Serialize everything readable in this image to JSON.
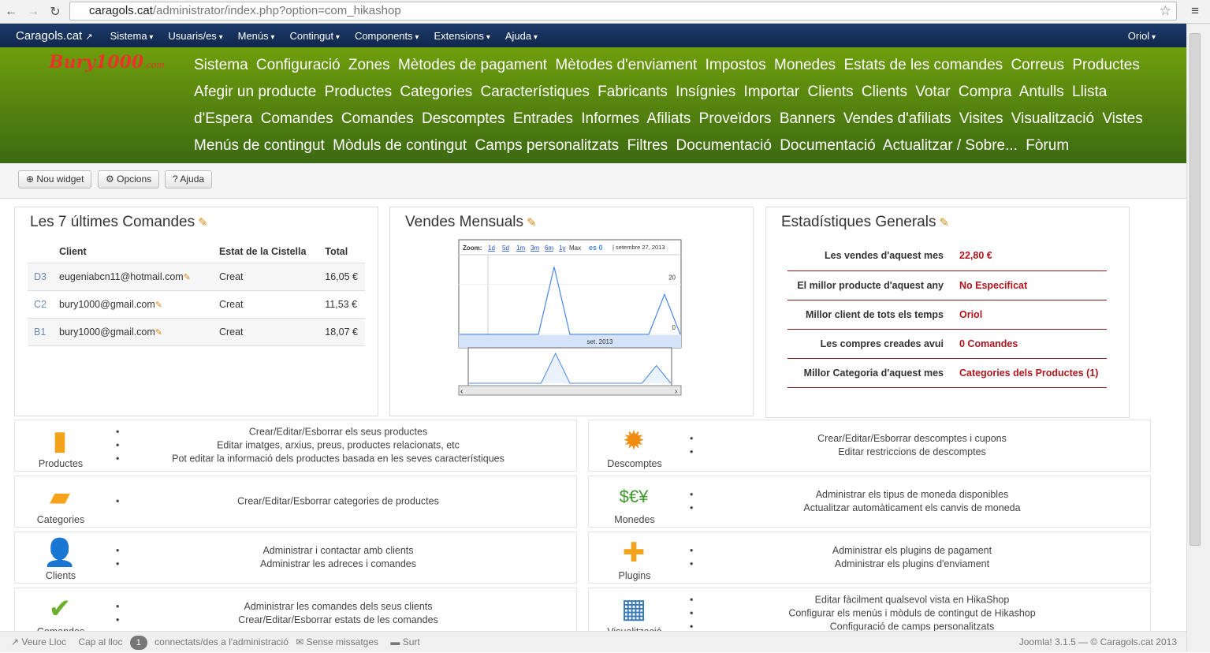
{
  "browser": {
    "url_host": "caragols.cat",
    "url_path": "/administrator/index.php?option=com_hikashop"
  },
  "navbar": {
    "brand": "Caragols.cat",
    "items": [
      "Sistema",
      "Usuaris/es",
      "Menús",
      "Contingut",
      "Components",
      "Extensions",
      "Ajuda"
    ],
    "user": "Oriol"
  },
  "banner": {
    "logo": "Bury1000.com",
    "links": [
      "Sistema",
      "Configuració",
      "Zones",
      "Mètodes de pagament",
      "Mètodes d'enviament",
      "Impostos",
      "Monedes",
      "Estats de les comandes",
      "Correus",
      "Productes",
      "Afegir un producte",
      "Productes",
      "Categories",
      "Característiques",
      "Fabricants",
      "Insígnies",
      "Importar",
      "Clients",
      "Clients",
      "Votar",
      "Compra",
      "Antulls",
      "Llista d'Espera",
      "Comandes",
      "Comandes",
      "Descomptes",
      "Entrades",
      "Informes",
      "Afiliats",
      "Proveïdors",
      "Banners",
      "Vendes d'afiliats",
      "Visites",
      "Visualització",
      "Vistes",
      "Menús de contingut",
      "Mòduls de contingut",
      "Camps personalitzats",
      "Filtres",
      "Documentació",
      "Documentació",
      "Actualitzar / Sobre...",
      "Fòrum"
    ]
  },
  "toolbar": {
    "new_widget": "Nou widget",
    "options": "Opcions",
    "help": "Ajuda"
  },
  "orders": {
    "title": "Les 7 últimes Comandes",
    "headers": [
      "Client",
      "Estat de la Cistella",
      "Total"
    ],
    "rows": [
      {
        "id": "D3",
        "client": "eugeniabcn11@hotmail.com",
        "status": "Creat",
        "total": "16,05 €"
      },
      {
        "id": "C2",
        "client": "bury1000@gmail.com",
        "status": "Creat",
        "total": "11,53 €"
      },
      {
        "id": "B1",
        "client": "bury1000@gmail.com",
        "status": "Creat",
        "total": "18,07 €"
      }
    ]
  },
  "sales": {
    "title": "Vendes Mensuals"
  },
  "chart_data": {
    "type": "line",
    "zoom_label": "Zoom:",
    "zoom_options": [
      "1d",
      "5d",
      "1m",
      "3m",
      "6m",
      "1y",
      "Max"
    ],
    "legend": "es 0",
    "date_label": "setembre 27, 2013",
    "x_tick": "set. 2013",
    "y_ticks": [
      0,
      20
    ],
    "ylim": [
      0,
      30
    ],
    "values": [
      0,
      0,
      0,
      0,
      0,
      0,
      27,
      0,
      0,
      0,
      0,
      0,
      0,
      16,
      0
    ],
    "color": "#4a86e8"
  },
  "stats": {
    "title": "Estadístiques Generals",
    "rows": [
      {
        "k": "Les vendes d'aquest mes",
        "v": "22,80 €"
      },
      {
        "k": "El millor producte d'aquest any",
        "v": "No Especificat"
      },
      {
        "k": "Millor client de tots els temps",
        "v": "Oriol"
      },
      {
        "k": "Les compres creades avui",
        "v": "0 Comandes"
      },
      {
        "k": "Millor Categoria d'aquest mes",
        "v": "Categories dels Productes (1)"
      }
    ]
  },
  "tiles": [
    {
      "name": "Productes",
      "icon": "box-icon",
      "lines": [
        "Crear/Editar/Esborrar els seus productes",
        "Editar imatges, arxius, preus, productes relacionats, etc",
        "Pot editar la informació dels productes basada en les seves característiques"
      ]
    },
    {
      "name": "Descomptes",
      "icon": "discount-badge-icon",
      "lines": [
        "Crear/Editar/Esborrar descomptes i cupons",
        "Editar restriccions de descomptes"
      ]
    },
    {
      "name": "Categories",
      "icon": "folder-icon",
      "lines": [
        "Crear/Editar/Esborrar categories de productes"
      ]
    },
    {
      "name": "Monedes",
      "icon": "currency-icon",
      "lines": [
        "Administrar els tipus de moneda disponibles",
        "Actualitzar automàticament els canvis de moneda"
      ]
    },
    {
      "name": "Clients",
      "icon": "users-icon",
      "lines": [
        "Administrar i contactar amb clients",
        "Administrar les adreces i comandes"
      ]
    },
    {
      "name": "Plugins",
      "icon": "puzzle-icon",
      "lines": [
        "Administrar els plugins de pagament",
        "Administrar els plugins d'enviament"
      ]
    },
    {
      "name": "Comandes",
      "icon": "checklist-icon",
      "lines": [
        "Administrar les comandes dels seus clients",
        "Crear/Editar/Esborrar estats de les comandes"
      ]
    },
    {
      "name": "Visualització",
      "icon": "window-icon",
      "lines": [
        "Editar fàcilment qualsevol vista en HikaShop",
        "Configurar els menús i mòduls de contingut de Hikashop",
        "Configuració de camps personalitzats"
      ]
    }
  ],
  "status": {
    "view_site": "Veure Lloc",
    "no_site": "Cap al lloc",
    "online_count": "1",
    "online_label": "connectats/des a l'administració",
    "messages": "Sense missatges",
    "logout": "Surt",
    "footer": "Joomla! 3.1.5 — © Caragols.cat 2013"
  }
}
